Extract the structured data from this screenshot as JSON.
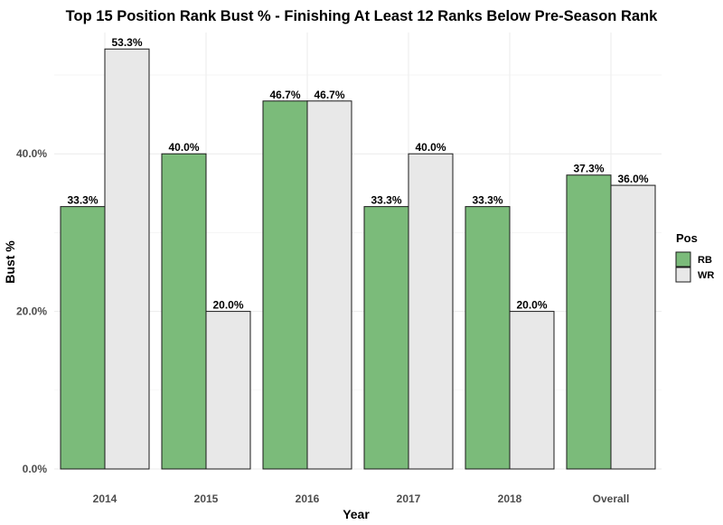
{
  "chart_data": {
    "type": "bar",
    "title": "Top 15 Position Rank Bust % - Finishing At Least 12 Ranks Below Pre-Season Rank",
    "xlabel": "Year",
    "ylabel": "Bust %",
    "categories": [
      "2014",
      "2015",
      "2016",
      "2017",
      "2018",
      "Overall"
    ],
    "series": [
      {
        "name": "RB",
        "values": [
          33.3,
          40.0,
          46.7,
          33.3,
          33.3,
          37.3
        ],
        "labels": [
          "33.3%",
          "40.0%",
          "46.7%",
          "33.3%",
          "33.3%",
          "37.3%"
        ]
      },
      {
        "name": "WR",
        "values": [
          53.3,
          20.0,
          46.7,
          40.0,
          20.0,
          36.0
        ],
        "labels": [
          "53.3%",
          "20.0%",
          "46.7%",
          "40.0%",
          "20.0%",
          "36.0%"
        ]
      }
    ],
    "ylim": [
      0,
      56
    ],
    "yticks": [
      0,
      20,
      40
    ],
    "ytick_labels": [
      "0.0%",
      "20.0%",
      "40.0%"
    ],
    "grid": true,
    "legend": {
      "title": "Pos",
      "position": "right"
    },
    "colors": {
      "RB": "#7bbb7a",
      "WR": "#e8e8e8",
      "bar_border": "#1a1a1a",
      "grid": "#ebebeb"
    }
  }
}
